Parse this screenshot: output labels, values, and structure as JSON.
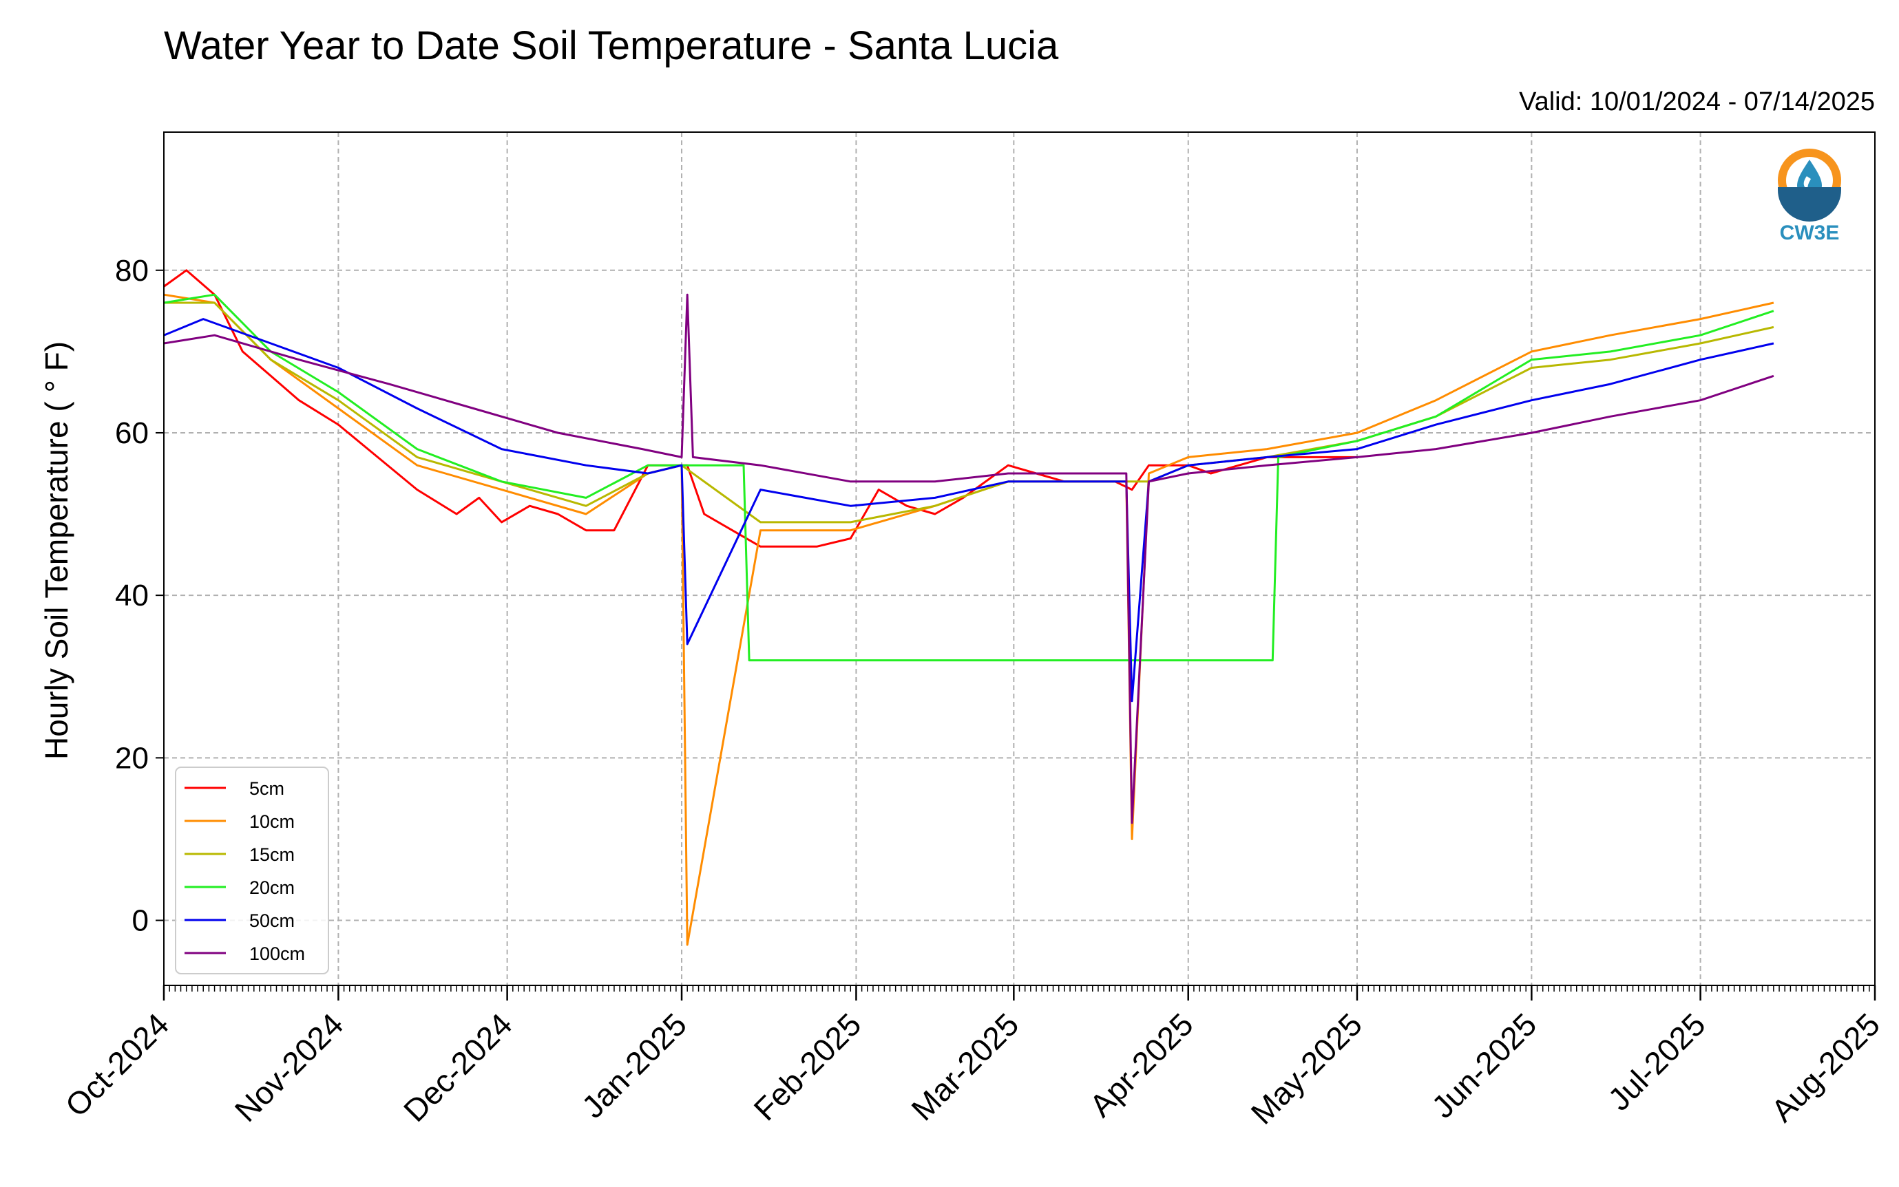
{
  "chart_data": {
    "type": "line",
    "title": "Water Year to Date Soil Temperature - Santa Lucia",
    "subtitle": "Valid: 10/01/2024 - 07/14/2025",
    "xlabel": "",
    "ylabel": "Hourly Soil Temperature ( ° F)",
    "xlim": [
      "2024-10-01",
      "2025-08-01"
    ],
    "ylim": [
      -8,
      97
    ],
    "x_tick_labels": [
      "Oct-2024",
      "Nov-2024",
      "Dec-2024",
      "Jan-2025",
      "Feb-2025",
      "Mar-2025",
      "Apr-2025",
      "May-2025",
      "Jun-2025",
      "Jul-2025",
      "Aug-2025"
    ],
    "x_tick_dates": [
      "2024-10-01",
      "2024-11-01",
      "2024-12-01",
      "2025-01-01",
      "2025-02-01",
      "2025-03-01",
      "2025-04-01",
      "2025-05-01",
      "2025-06-01",
      "2025-07-01",
      "2025-08-01"
    ],
    "y_ticks": [
      0,
      20,
      40,
      60,
      80
    ],
    "grid": true,
    "legend_position": "lower-left",
    "logo_text": "CW3E",
    "series": [
      {
        "name": "5cm",
        "color": "#ff0000",
        "x": [
          "2024-10-01",
          "2024-10-05",
          "2024-10-10",
          "2024-10-15",
          "2024-10-20",
          "2024-10-25",
          "2024-11-01",
          "2024-11-08",
          "2024-11-15",
          "2024-11-22",
          "2024-11-26",
          "2024-11-30",
          "2024-12-05",
          "2024-12-10",
          "2024-12-15",
          "2024-12-20",
          "2024-12-26",
          "2025-01-01",
          "2025-01-02",
          "2025-01-05",
          "2025-01-10",
          "2025-01-15",
          "2025-01-20",
          "2025-01-25",
          "2025-01-31",
          "2025-02-05",
          "2025-02-10",
          "2025-02-15",
          "2025-02-20",
          "2025-02-28",
          "2025-03-05",
          "2025-03-10",
          "2025-03-15",
          "2025-03-19",
          "2025-03-22",
          "2025-03-25",
          "2025-04-01",
          "2025-04-05",
          "2025-04-10",
          "2025-04-15",
          "2025-04-20",
          "2025-04-25",
          "2025-05-01"
        ],
        "values": [
          78,
          80,
          77,
          70,
          67,
          64,
          61,
          57,
          53,
          50,
          52,
          49,
          51,
          50,
          48,
          48,
          56,
          56,
          56,
          50,
          48,
          46,
          46,
          46,
          47,
          53,
          51,
          50,
          52,
          56,
          55,
          54,
          54,
          54,
          53,
          56,
          56,
          55,
          56,
          57,
          57,
          57,
          57
        ]
      },
      {
        "name": "10cm",
        "color": "#ff8c00",
        "x": [
          "2024-10-01",
          "2024-10-10",
          "2024-10-20",
          "2024-11-01",
          "2024-11-15",
          "2024-11-30",
          "2024-12-15",
          "2024-12-26",
          "2025-01-01",
          "2025-01-02",
          "2025-01-15",
          "2025-01-31",
          "2025-02-15",
          "2025-02-28",
          "2025-03-15",
          "2025-03-21",
          "2025-03-22",
          "2025-03-25",
          "2025-04-01",
          "2025-04-15",
          "2025-05-01",
          "2025-05-15",
          "2025-06-01",
          "2025-06-15",
          "2025-07-01",
          "2025-07-14"
        ],
        "values": [
          77,
          76,
          69,
          63,
          56,
          53,
          50,
          55,
          56,
          -3,
          48,
          48,
          51,
          54,
          54,
          54,
          10,
          55,
          57,
          58,
          60,
          64,
          70,
          72,
          74,
          76
        ]
      },
      {
        "name": "15cm",
        "color": "#b8b800",
        "x": [
          "2024-10-01",
          "2024-10-10",
          "2024-10-20",
          "2024-11-01",
          "2024-11-15",
          "2024-11-30",
          "2024-12-15",
          "2024-12-26",
          "2025-01-01",
          "2025-01-15",
          "2025-01-31",
          "2025-02-15",
          "2025-02-28",
          "2025-03-15",
          "2025-03-25",
          "2025-04-01",
          "2025-04-15",
          "2025-05-01",
          "2025-05-15",
          "2025-06-01",
          "2025-06-15",
          "2025-07-01",
          "2025-07-14"
        ],
        "values": [
          76,
          76,
          69,
          64,
          57,
          54,
          51,
          55,
          56,
          49,
          49,
          51,
          54,
          54,
          54,
          56,
          57,
          59,
          62,
          68,
          69,
          71,
          73
        ]
      },
      {
        "name": "20cm",
        "color": "#22ee22",
        "x": [
          "2024-10-01",
          "2024-10-10",
          "2024-10-20",
          "2024-11-01",
          "2024-11-15",
          "2024-11-30",
          "2024-12-15",
          "2024-12-26",
          "2025-01-01",
          "2025-01-12",
          "2025-01-13",
          "2025-04-16",
          "2025-04-17",
          "2025-05-01",
          "2025-05-15",
          "2025-06-01",
          "2025-06-15",
          "2025-07-01",
          "2025-07-14"
        ],
        "values": [
          76,
          77,
          70,
          65,
          58,
          54,
          52,
          56,
          56,
          56,
          32,
          32,
          57,
          59,
          62,
          69,
          70,
          72,
          75
        ]
      },
      {
        "name": "50cm",
        "color": "#0000ee",
        "x": [
          "2024-10-01",
          "2024-10-08",
          "2024-10-20",
          "2024-11-01",
          "2024-11-15",
          "2024-11-30",
          "2024-12-15",
          "2024-12-26",
          "2025-01-01",
          "2025-01-02",
          "2025-01-15",
          "2025-01-31",
          "2025-02-15",
          "2025-02-28",
          "2025-03-15",
          "2025-03-21",
          "2025-03-22",
          "2025-03-25",
          "2025-04-01",
          "2025-04-15",
          "2025-05-01",
          "2025-05-15",
          "2025-06-01",
          "2025-06-15",
          "2025-07-01",
          "2025-07-14"
        ],
        "values": [
          72,
          74,
          71,
          68,
          63,
          58,
          56,
          55,
          56,
          34,
          53,
          51,
          52,
          54,
          54,
          54,
          27,
          54,
          56,
          57,
          58,
          61,
          64,
          66,
          69,
          71
        ]
      },
      {
        "name": "100cm",
        "color": "#800080",
        "x": [
          "2024-10-01",
          "2024-10-10",
          "2024-10-25",
          "2024-11-10",
          "2024-11-25",
          "2024-12-10",
          "2024-12-25",
          "2025-01-01",
          "2025-01-02",
          "2025-01-03",
          "2025-01-15",
          "2025-01-31",
          "2025-02-15",
          "2025-02-28",
          "2025-03-15",
          "2025-03-21",
          "2025-03-22",
          "2025-03-25",
          "2025-04-01",
          "2025-04-15",
          "2025-05-01",
          "2025-05-15",
          "2025-06-01",
          "2025-06-15",
          "2025-07-01",
          "2025-07-14"
        ],
        "values": [
          71,
          72,
          69,
          66,
          63,
          60,
          58,
          57,
          77,
          57,
          56,
          54,
          54,
          55,
          55,
          55,
          12,
          54,
          55,
          56,
          57,
          58,
          60,
          62,
          64,
          67
        ]
      }
    ]
  }
}
